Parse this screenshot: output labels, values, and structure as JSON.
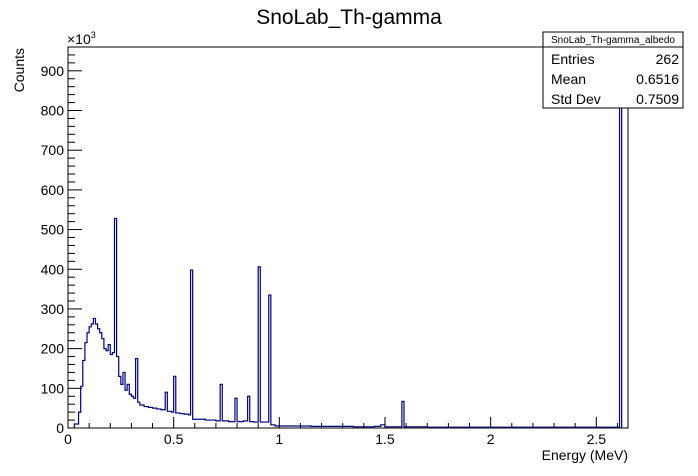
{
  "chart_data": {
    "type": "histogram",
    "title": "SnoLab_Th-gamma",
    "xlabel": "Energy (MeV)",
    "ylabel": "Counts",
    "y_multiplier_label": "×10",
    "y_multiplier_exponent": "3",
    "xlim": [
      0,
      2.65
    ],
    "ylim": [
      0,
      960
    ],
    "x_ticks": [
      0,
      0.5,
      1,
      1.5,
      2,
      2.5
    ],
    "x_tick_labels": [
      "0",
      "0.5",
      "1",
      "1.5",
      "2",
      "2.5"
    ],
    "y_ticks": [
      0,
      100,
      200,
      300,
      400,
      500,
      600,
      700,
      800,
      900
    ],
    "y_tick_labels": [
      "0",
      "100",
      "200",
      "300",
      "400",
      "500",
      "600",
      "700",
      "800",
      "900"
    ],
    "line_color": "#00007f",
    "bin_width": 0.01,
    "series": [
      {
        "name": "SnoLab_Th-gamma_albedo",
        "points": [
          [
            0.03,
            10
          ],
          [
            0.05,
            40
          ],
          [
            0.06,
            105
          ],
          [
            0.07,
            170
          ],
          [
            0.08,
            215
          ],
          [
            0.09,
            240
          ],
          [
            0.1,
            255
          ],
          [
            0.11,
            262
          ],
          [
            0.12,
            276
          ],
          [
            0.13,
            262
          ],
          [
            0.14,
            250
          ],
          [
            0.15,
            240
          ],
          [
            0.16,
            225
          ],
          [
            0.17,
            200
          ],
          [
            0.18,
            195
          ],
          [
            0.19,
            210
          ],
          [
            0.2,
            185
          ],
          [
            0.21,
            190
          ],
          [
            0.22,
            528
          ],
          [
            0.23,
            180
          ],
          [
            0.24,
            130
          ],
          [
            0.25,
            110
          ],
          [
            0.26,
            140
          ],
          [
            0.27,
            95
          ],
          [
            0.28,
            110
          ],
          [
            0.29,
            85
          ],
          [
            0.3,
            80
          ],
          [
            0.31,
            75
          ],
          [
            0.32,
            175
          ],
          [
            0.33,
            65
          ],
          [
            0.34,
            58
          ],
          [
            0.36,
            54
          ],
          [
            0.38,
            52
          ],
          [
            0.4,
            50
          ],
          [
            0.42,
            48
          ],
          [
            0.44,
            46
          ],
          [
            0.46,
            90
          ],
          [
            0.47,
            42
          ],
          [
            0.49,
            40
          ],
          [
            0.5,
            130
          ],
          [
            0.51,
            38
          ],
          [
            0.53,
            36
          ],
          [
            0.55,
            35
          ],
          [
            0.57,
            33
          ],
          [
            0.58,
            398
          ],
          [
            0.59,
            22
          ],
          [
            0.62,
            22
          ],
          [
            0.65,
            20
          ],
          [
            0.68,
            20
          ],
          [
            0.7,
            18
          ],
          [
            0.72,
            110
          ],
          [
            0.73,
            18
          ],
          [
            0.76,
            16
          ],
          [
            0.79,
            75
          ],
          [
            0.8,
            16
          ],
          [
            0.83,
            18
          ],
          [
            0.85,
            80
          ],
          [
            0.86,
            16
          ],
          [
            0.88,
            15
          ],
          [
            0.9,
            406
          ],
          [
            0.91,
            15
          ],
          [
            0.93,
            15
          ],
          [
            0.95,
            335
          ],
          [
            0.96,
            8
          ],
          [
            0.97,
            8
          ],
          [
            0.98,
            5
          ],
          [
            1.05,
            5
          ],
          [
            1.15,
            4
          ],
          [
            1.25,
            4
          ],
          [
            1.35,
            3
          ],
          [
            1.45,
            4
          ],
          [
            1.48,
            8
          ],
          [
            1.5,
            3
          ],
          [
            1.55,
            3
          ],
          [
            1.58,
            67
          ],
          [
            1.59,
            3
          ],
          [
            1.7,
            2
          ],
          [
            1.9,
            2
          ],
          [
            2.1,
            2
          ],
          [
            2.3,
            2
          ],
          [
            2.5,
            2
          ],
          [
            2.59,
            2
          ],
          [
            2.61,
            942
          ]
        ]
      }
    ],
    "legend_location": "top-right",
    "grid": false
  },
  "stats_box": {
    "title": "SnoLab_Th-gamma_albedo",
    "rows": [
      {
        "label": "Entries",
        "value": "262"
      },
      {
        "label": "Mean",
        "value": "0.6516"
      },
      {
        "label": "Std Dev",
        "value": "0.7509"
      }
    ]
  }
}
